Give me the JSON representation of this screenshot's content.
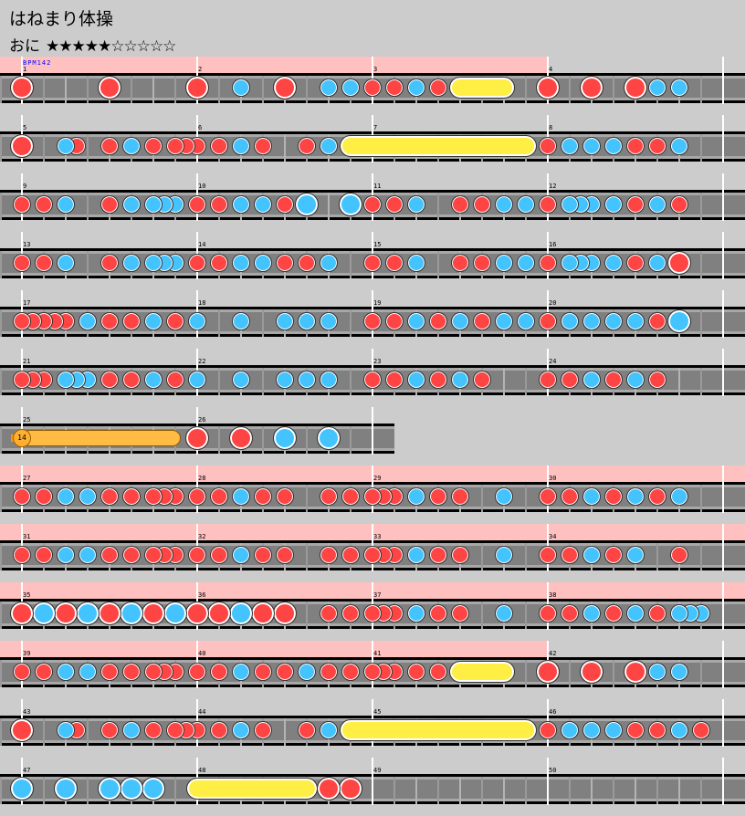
{
  "song": {
    "title": "はねまり体操",
    "difficulty": "おに",
    "stars": "★★★★★☆☆☆☆☆",
    "level": 5,
    "level_max": 10
  },
  "bpm_label": "BPM142",
  "note_legend": {
    "1": "don",
    "2": "ka",
    "3": "big-don",
    "4": "big-ka",
    "6": "drumroll-start",
    "7": "balloon-start",
    "8": "roll-end"
  },
  "colors": {
    "don": "#ff4444",
    "ka": "#44c4ff",
    "drumroll": "#ffee44",
    "balloon": "#ffbb44",
    "gogo": "#ffc0c0",
    "lane": "#808080",
    "background": "#cccccc"
  },
  "rows": [
    {
      "measures": [
        {
          "n": "1",
          "notes": "3000000030000000",
          "gogo": true
        },
        {
          "n": "2",
          "notes": "3000200030002020",
          "gogo": true
        },
        {
          "n": "3",
          "notes": "1010201060008000",
          "gogo": true
        },
        {
          "n": "4",
          "notes": "3000300030202000",
          "gogo": false
        }
      ]
    },
    {
      "measures": [
        {
          "n": "5",
          "notes": "3000210010201011",
          "gogo": false
        },
        {
          "n": "6",
          "notes": "1010201000102060",
          "gogo": false
        },
        {
          "n": "7",
          "notes": "0000000000000080",
          "gogo": false
        },
        {
          "n": "8",
          "notes": "1020202010102000",
          "gogo": false
        }
      ]
    },
    {
      "measures": [
        {
          "n": "9",
          "notes": "1010200010202220",
          "gogo": false
        },
        {
          "n": "10",
          "notes": "1010202010400040",
          "gogo": false
        },
        {
          "n": "11",
          "notes": "1010200010102020",
          "gogo": false
        },
        {
          "n": "12",
          "notes": "1022202010201000",
          "gogo": false
        }
      ]
    },
    {
      "measures": [
        {
          "n": "13",
          "notes": "1010200010202220",
          "gogo": false
        },
        {
          "n": "14",
          "notes": "1010202010102000",
          "gogo": false
        },
        {
          "n": "15",
          "notes": "1010200010102020",
          "gogo": false
        },
        {
          "n": "16",
          "notes": "1022202010203000",
          "gogo": false
        }
      ]
    },
    {
      "measures": [
        {
          "n": "17",
          "notes": "1111102010102010",
          "gogo": false
        },
        {
          "n": "18",
          "notes": "2000200020202000",
          "gogo": false
        },
        {
          "n": "19",
          "notes": "1010201020102020",
          "gogo": false
        },
        {
          "n": "20",
          "notes": "1020202020104000",
          "gogo": false
        }
      ]
    },
    {
      "measures": [
        {
          "n": "21",
          "notes": "1110222010102010",
          "gogo": false
        },
        {
          "n": "22",
          "notes": "2000200020202000",
          "gogo": false
        },
        {
          "n": "23",
          "notes": "1010201020100000",
          "gogo": false
        },
        {
          "n": "24",
          "notes": "1010201020100000",
          "gogo": false
        }
      ]
    },
    {
      "measures": [
        {
          "n": "25",
          "notes": "7000000000000080",
          "gogo": false,
          "balloon": "14"
        },
        {
          "n": "26",
          "notes": "3000300040004000",
          "gogo": false
        }
      ]
    },
    {
      "measures": [
        {
          "n": "27",
          "notes": "1010202010101110",
          "gogo": true
        },
        {
          "n": "28",
          "notes": "1010201010001010",
          "gogo": true
        },
        {
          "n": "29",
          "notes": "1110201010002000",
          "gogo": true
        },
        {
          "n": "30",
          "notes": "1010201020102000",
          "gogo": true
        }
      ]
    },
    {
      "measures": [
        {
          "n": "31",
          "notes": "1010202010101110",
          "gogo": true
        },
        {
          "n": "32",
          "notes": "1010201010001010",
          "gogo": true
        },
        {
          "n": "33",
          "notes": "1110201010002000",
          "gogo": true
        },
        {
          "n": "34",
          "notes": "1010201020001000",
          "gogo": true
        }
      ]
    },
    {
      "measures": [
        {
          "n": "35",
          "notes": "3040304030403040",
          "gogo": true
        },
        {
          "n": "36",
          "notes": "3030403030001010",
          "gogo": true
        },
        {
          "n": "37",
          "notes": "1110201010002000",
          "gogo": true
        },
        {
          "n": "38",
          "notes": "1010201020102220",
          "gogo": true
        }
      ]
    },
    {
      "measures": [
        {
          "n": "39",
          "notes": "1010202010101110",
          "gogo": true
        },
        {
          "n": "40",
          "notes": "1010201010201010",
          "gogo": true
        },
        {
          "n": "41",
          "notes": "1110101060008000",
          "gogo": true
        },
        {
          "n": "42",
          "notes": "3000300030202000",
          "gogo": false
        }
      ]
    },
    {
      "measures": [
        {
          "n": "43",
          "notes": "3000210010201011",
          "gogo": false
        },
        {
          "n": "44",
          "notes": "1010201000102060",
          "gogo": false
        },
        {
          "n": "45",
          "notes": "0000000000000080",
          "gogo": false
        },
        {
          "n": "46",
          "notes": "1020202010102010",
          "gogo": false
        }
      ]
    },
    {
      "measures": [
        {
          "n": "47",
          "notes": "4000400040404000",
          "gogo": false
        },
        {
          "n": "48",
          "notes": "6000000000803030",
          "gogo": false
        },
        {
          "n": "49",
          "notes": "0000000000000000",
          "gogo": false
        },
        {
          "n": "50",
          "notes": "0000000000000000",
          "gogo": false
        }
      ]
    }
  ]
}
